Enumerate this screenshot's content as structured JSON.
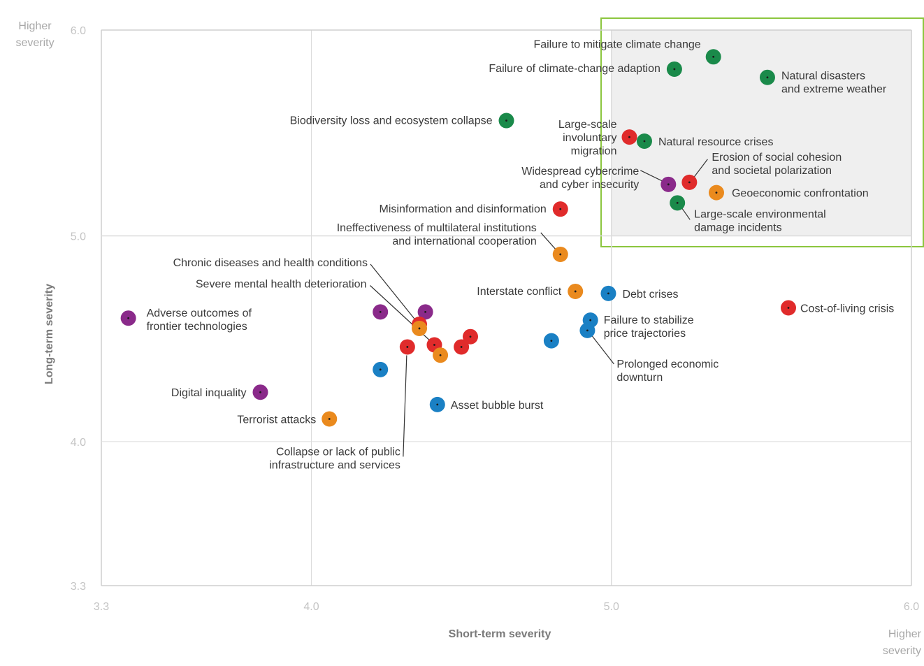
{
  "chart_data": {
    "type": "scatter",
    "title": "",
    "xlabel": "Short-term severity",
    "ylabel": "Long-term severity",
    "xlim": [
      3.3,
      6.0
    ],
    "ylim": [
      3.3,
      6.0
    ],
    "x_ticks": [
      "3.3",
      "4.0",
      "5.0",
      "6.0"
    ],
    "y_ticks": [
      "3.3",
      "4.0",
      "5.0",
      "6.0"
    ],
    "x_corner_label": [
      "Higher",
      "severity"
    ],
    "y_corner_label": [
      "Higher",
      "severity"
    ],
    "grid": true,
    "highlight_region": {
      "x": [
        5.0,
        6.0
      ],
      "y": [
        5.0,
        6.0
      ]
    },
    "colors": {
      "environmental": "#1a8a4a",
      "societal": "#e02b2b",
      "technological": "#8a2a8a",
      "geopolitical": "#ea8a1e",
      "economic": "#1a80c4",
      "highlight_border": "#8cc63f"
    },
    "points": [
      {
        "label": [
          "Failure to mitigate climate change"
        ],
        "category": "environmental",
        "x": 5.34,
        "y": 5.87
      },
      {
        "label": [
          "Failure of climate-change adaption"
        ],
        "category": "environmental",
        "x": 5.21,
        "y": 5.81
      },
      {
        "label": [
          "Natural disasters",
          "and extreme weather"
        ],
        "category": "environmental",
        "x": 5.52,
        "y": 5.77
      },
      {
        "label": [
          "Biodiversity loss and ecosystem collapse"
        ],
        "category": "environmental",
        "x": 4.65,
        "y": 5.56
      },
      {
        "label": [
          "Large-scale",
          "involuntary",
          "migration"
        ],
        "category": "societal",
        "x": 5.06,
        "y": 5.48
      },
      {
        "label": [
          "Natural resource crises"
        ],
        "category": "environmental",
        "x": 5.11,
        "y": 5.46
      },
      {
        "label": [
          "Widespread cybercrime",
          "and cyber insecurity"
        ],
        "category": "technological",
        "x": 5.19,
        "y": 5.25
      },
      {
        "label": [
          "Erosion of social cohesion",
          "and societal polarization"
        ],
        "category": "societal",
        "x": 5.26,
        "y": 5.26
      },
      {
        "label": [
          "Geoeconomic confrontation"
        ],
        "category": "geopolitical",
        "x": 5.35,
        "y": 5.21
      },
      {
        "label": [
          "Large-scale environmental",
          "damage incidents"
        ],
        "category": "environmental",
        "x": 5.22,
        "y": 5.16
      },
      {
        "label": [
          "Misinformation and disinformation"
        ],
        "category": "societal",
        "x": 4.83,
        "y": 5.13
      },
      {
        "label": [
          "Ineffectiveness of multilateral institutions",
          "and international cooperation"
        ],
        "category": "geopolitical",
        "x": 4.83,
        "y": 4.91
      },
      {
        "label": [
          "Interstate conflict"
        ],
        "category": "geopolitical",
        "x": 4.88,
        "y": 4.73
      },
      {
        "label": [
          "Debt crises"
        ],
        "category": "economic",
        "x": 4.99,
        "y": 4.72
      },
      {
        "label": [
          "Cost-of-living crisis"
        ],
        "category": "societal",
        "x": 5.59,
        "y": 4.65
      },
      {
        "label": [
          "Failure to stabilize",
          "price trajectories"
        ],
        "category": "economic",
        "x": 4.93,
        "y": 4.59
      },
      {
        "label": [
          "Prolonged economic",
          "downturn"
        ],
        "category": "economic",
        "x": 4.92,
        "y": 4.54
      },
      {
        "label": [
          ""
        ],
        "category": "economic",
        "x": 4.8,
        "y": 4.49
      },
      {
        "label": [
          "Adverse outcomes of",
          "frontier technologies"
        ],
        "category": "technological",
        "x": 3.39,
        "y": 4.6
      },
      {
        "label": [
          ""
        ],
        "category": "technological",
        "x": 4.23,
        "y": 4.63
      },
      {
        "label": [
          ""
        ],
        "category": "technological",
        "x": 4.38,
        "y": 4.63
      },
      {
        "label": [
          "Chronic diseases and health conditions"
        ],
        "category": "societal",
        "x": 4.36,
        "y": 4.57
      },
      {
        "label": [
          ""
        ],
        "category": "geopolitical",
        "x": 4.36,
        "y": 4.55
      },
      {
        "label": [
          "Severe mental health deterioration"
        ],
        "category": "societal",
        "x": 4.41,
        "y": 4.47
      },
      {
        "label": [
          ""
        ],
        "category": "geopolitical",
        "x": 4.43,
        "y": 4.42
      },
      {
        "label": [
          "Collapse or lack of public",
          "infrastructure and services"
        ],
        "category": "societal",
        "x": 4.32,
        "y": 4.46
      },
      {
        "label": [
          ""
        ],
        "category": "societal",
        "x": 4.5,
        "y": 4.46
      },
      {
        "label": [
          ""
        ],
        "category": "societal",
        "x": 4.53,
        "y": 4.51
      },
      {
        "label": [
          ""
        ],
        "category": "economic",
        "x": 4.23,
        "y": 4.35
      },
      {
        "label": [
          "Digital inquality"
        ],
        "category": "technological",
        "x": 3.83,
        "y": 4.24
      },
      {
        "label": [
          "Asset bubble burst"
        ],
        "category": "economic",
        "x": 4.42,
        "y": 4.18
      },
      {
        "label": [
          "Terrorist attacks"
        ],
        "category": "geopolitical",
        "x": 4.06,
        "y": 4.11
      }
    ]
  }
}
